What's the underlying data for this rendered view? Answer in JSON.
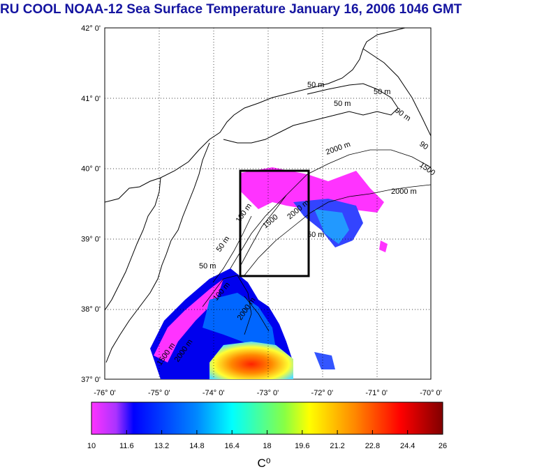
{
  "title": "RU COOL  NOAA-12 Sea Surface Temperature January 16, 2006 1046 GMT",
  "map": {
    "lat_labels": [
      "42° 0'",
      "41° 0'",
      "40° 0'",
      "39° 0'",
      "38° 0'",
      "37° 0'"
    ],
    "lon_labels": [
      "-76° 0'",
      "-75° 0'",
      "-74° 0'",
      "-73° 0'",
      "-72° 0'",
      "-71° 0'",
      "-70° 0'"
    ],
    "contour_labels": [
      "50 m",
      "50 m",
      "50 m",
      "90 m",
      "90",
      "2000 m",
      "1500",
      "2000 m",
      "50 m",
      "50 m",
      "100 m",
      "1500",
      "2000 m",
      "50 m",
      "100 m",
      "2000 m",
      "1500 m",
      "2000 m"
    ],
    "box": {
      "lon": [
        -73.5,
        -72.5
      ],
      "lat": [
        38.5,
        40.0
      ]
    }
  },
  "colorbar": {
    "ticks": [
      "10",
      "11.6",
      "13.2",
      "14.8",
      "16.4",
      "18",
      "19.6",
      "21.2",
      "22.8",
      "24.4",
      "26"
    ],
    "unit": "C⁰",
    "colors": [
      "#ff33cc",
      "#0000ff",
      "#00ffff",
      "#ffff00",
      "#ff0000",
      "#800000"
    ]
  }
}
